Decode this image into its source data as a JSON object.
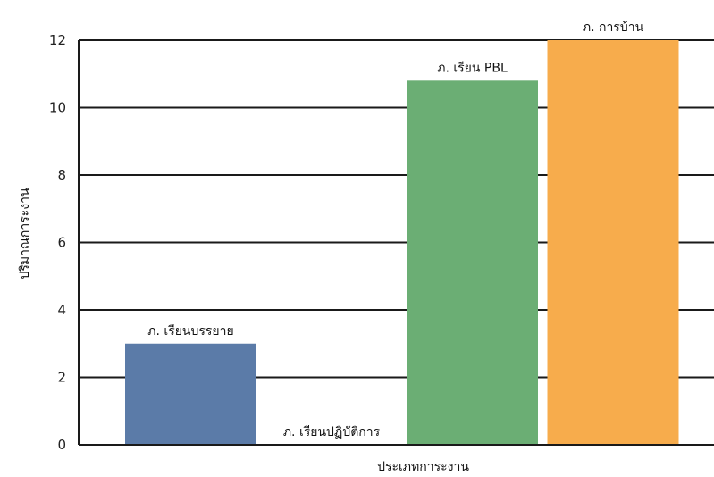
{
  "chart_data": {
    "type": "bar",
    "title": "",
    "xlabel": "ประเภทการะงาน",
    "ylabel": "ปริมาณการะงาน",
    "ylim": [
      0,
      12
    ],
    "yticks": [
      0,
      2,
      4,
      6,
      8,
      10,
      12
    ],
    "grid": true,
    "categories": [
      "ภ. เรียนบรรยาย",
      "ภ. เรียนปฏิบัติการ",
      "ภ. เรียน PBL",
      "ภ. การบ้าน"
    ],
    "values": [
      3,
      0,
      10.8,
      12
    ],
    "colors": [
      "#5b7ba8",
      "#5b7ba8",
      "#6bae74",
      "#f7ac4c"
    ]
  }
}
